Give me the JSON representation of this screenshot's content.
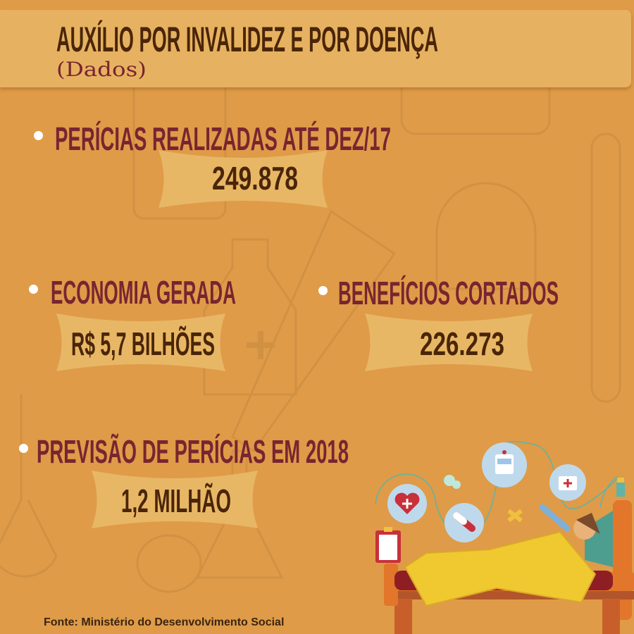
{
  "header": {
    "title": "AUXÍLIO POR INVALIDEZ  E  POR DOENÇA",
    "subtitle": "(Dados)"
  },
  "stats": [
    {
      "label": "PERÍCIAS REALIZADAS ATÉ DEZ/17",
      "value": "249.878"
    },
    {
      "label": "ECONOMIA GERADA",
      "value": "R$ 5,7 BILHÕES"
    },
    {
      "label": "BENEFÍCIOS CORTADOS",
      "value": "226.273"
    },
    {
      "label": "PREVISÃO DE PERÍCIAS EM 2018",
      "value": "1,2 MILHÃO"
    }
  ],
  "footer": {
    "source": "Fonte: Ministério do Desenvolvimento Social"
  },
  "colors": {
    "background": "#DF9B48",
    "header": "#E6B261",
    "ribbon": "#E8B765",
    "label": "#7A2430",
    "value": "#4A2508"
  },
  "illustration": {
    "icons": [
      "heart-cross-icon",
      "pill-icon",
      "tablets-icon",
      "ambulance-icon",
      "bandage-icon",
      "first-aid-kit-icon",
      "thermometer-icon",
      "clipboard-icon",
      "oxygen-tank-icon"
    ]
  }
}
